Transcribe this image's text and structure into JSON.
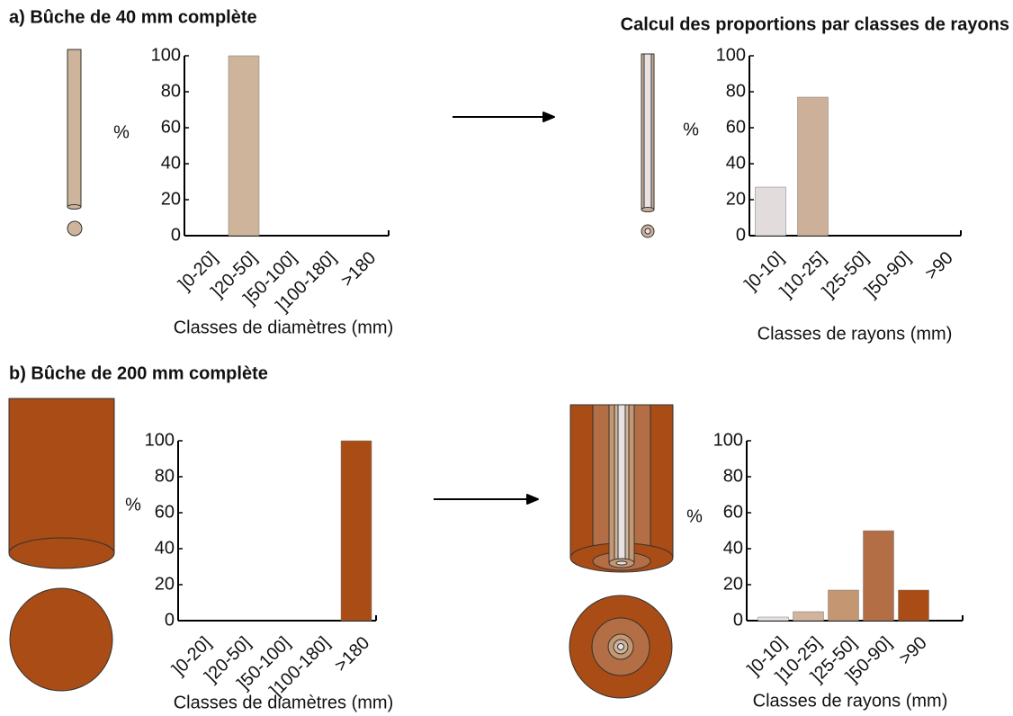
{
  "chart_data": [
    {
      "type": "bar",
      "title": "a) Bûche de 40 mm complète",
      "ylabel": "%",
      "xlabel": "Classes de diamètres (mm)",
      "categories": [
        "]0-20]",
        "]20-50]",
        "]50-100]",
        "]100-180]",
        ">180"
      ],
      "values": [
        0,
        100,
        0,
        0,
        0
      ],
      "colors": [
        "#cdb49a",
        "#cdb49a",
        "#cdb49a",
        "#cdb49a",
        "#cdb49a"
      ],
      "ylim": [
        0,
        100
      ],
      "yticks": [
        0,
        20,
        40,
        60,
        80,
        100
      ]
    },
    {
      "type": "bar",
      "title": "Calcul des proportions par classes de rayons",
      "ylabel": "%",
      "xlabel": "Classes de rayons (mm)",
      "categories": [
        "]0-10]",
        "]10-25]",
        "]25-50]",
        "]50-90]",
        ">90"
      ],
      "values": [
        27,
        77,
        0,
        0,
        0
      ],
      "colors": [
        "#e2dcdc",
        "#cdb09a",
        "#c49772",
        "#b36e45",
        "#a94c15"
      ],
      "ylim": [
        0,
        100
      ],
      "yticks": [
        0,
        20,
        40,
        60,
        80,
        100
      ]
    },
    {
      "type": "bar",
      "title": "b) Bûche de 200 mm complète",
      "ylabel": "%",
      "xlabel": "Classes de diamètres (mm)",
      "categories": [
        "]0-20]",
        "]20-50]",
        "]50-100]",
        "]100-180]",
        ">180"
      ],
      "values": [
        0,
        0,
        0,
        0,
        100
      ],
      "colors": [
        "#a94c15",
        "#a94c15",
        "#a94c15",
        "#a94c15",
        "#a94c15"
      ],
      "ylim": [
        0,
        100
      ],
      "yticks": [
        0,
        20,
        40,
        60,
        80,
        100
      ]
    },
    {
      "type": "bar",
      "ylabel": "%",
      "xlabel": "Classes de rayons (mm)",
      "categories": [
        "]0-10]",
        "]10-25]",
        "]25-50]",
        "]50-90]",
        ">90"
      ],
      "values": [
        2,
        5,
        17,
        50,
        17
      ],
      "colors": [
        "#e8e2e2",
        "#d0b49c",
        "#c49772",
        "#b36e45",
        "#a94c15"
      ],
      "ylim": [
        0,
        100
      ],
      "yticks": [
        0,
        20,
        40,
        60,
        80,
        100
      ]
    }
  ]
}
